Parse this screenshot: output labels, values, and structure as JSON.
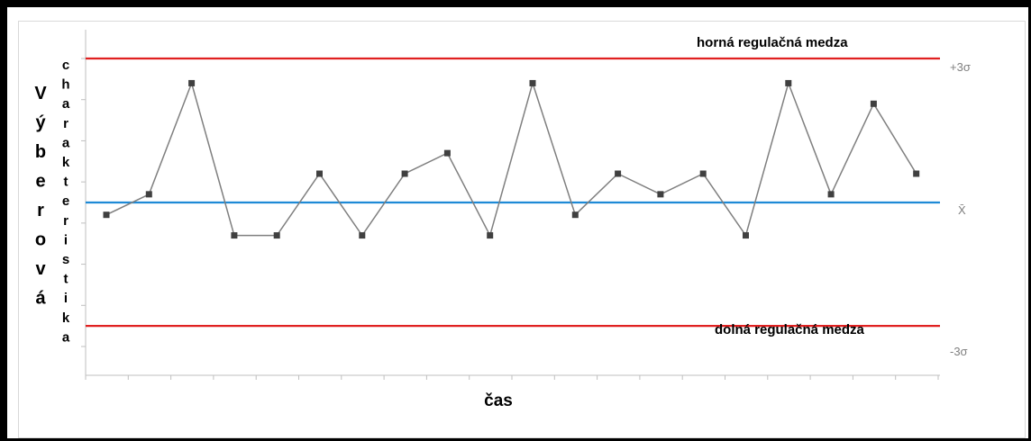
{
  "chart_data": {
    "type": "line",
    "xlabel": "čas",
    "ylabel_big": "Výberová",
    "ylabel_small": "charakteristika",
    "x": [
      1,
      2,
      3,
      4,
      5,
      6,
      7,
      8,
      9,
      10,
      11,
      12,
      13,
      14,
      15,
      16,
      17,
      18,
      19,
      20
    ],
    "y": [
      -0.8,
      -0.3,
      2.4,
      -1.3,
      -1.3,
      0.2,
      -1.3,
      0.2,
      0.7,
      -1.3,
      2.4,
      -0.8,
      0.2,
      -0.3,
      0.2,
      -1.3,
      2.4,
      -0.3,
      1.9,
      0.2
    ],
    "ylim": [
      -4.7,
      3.7
    ],
    "center_value": -0.5,
    "ucl_value": 3.0,
    "lcl_value": -3.5,
    "ucl_label": "horná regulačná medza",
    "lcl_label": "dolná regulačná medza",
    "ucl_marker": "+3σ",
    "lcl_marker": "-3σ",
    "center_marker": "X̄",
    "colors": {
      "limit": "#e02020",
      "center": "#1e8ad6",
      "series": "#7f7f7f",
      "marker": "#404040",
      "axis": "#bfbfbf"
    }
  }
}
